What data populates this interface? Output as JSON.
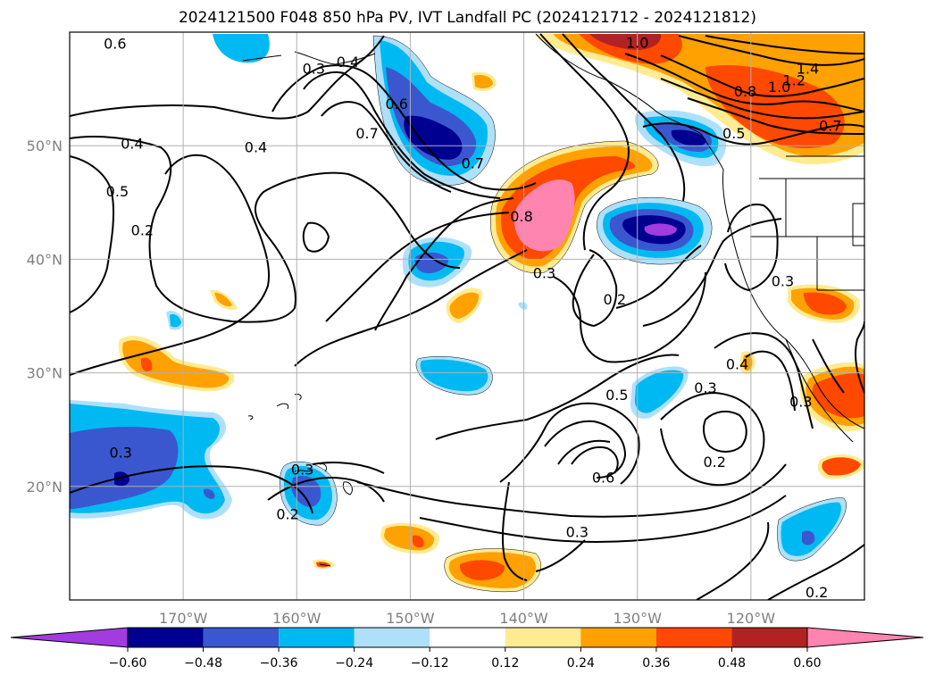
{
  "title": "2024121500 F048 850 hPa PV, IVT Landfall PC (2024121712 - 2024121812)",
  "map": {
    "lon_range": [
      -180,
      -110
    ],
    "lat_range": [
      10,
      60
    ],
    "lat_labels": [
      {
        "lat": 50,
        "text": "50°N"
      },
      {
        "lat": 40,
        "text": "40°N"
      },
      {
        "lat": 30,
        "text": "30°N"
      },
      {
        "lat": 20,
        "text": "20°N"
      }
    ],
    "lon_labels": [
      {
        "lon": -170,
        "text": "170°W"
      },
      {
        "lon": -160,
        "text": "160°W"
      },
      {
        "lon": -150,
        "text": "150°W"
      },
      {
        "lon": -140,
        "text": "140°W"
      },
      {
        "lon": -130,
        "text": "130°W"
      },
      {
        "lon": -120,
        "text": "120°W"
      }
    ]
  },
  "contour_labels": [
    {
      "text": "0.6",
      "lon": -176,
      "lat": 59
    },
    {
      "text": "0.4",
      "lon": -155.5,
      "lat": 57.4
    },
    {
      "text": "0.3",
      "lon": -158.5,
      "lat": 56.8
    },
    {
      "text": "1.0",
      "lon": -130,
      "lat": 59.1
    },
    {
      "text": "1.4",
      "lon": -115,
      "lat": 56.8
    },
    {
      "text": "1.2",
      "lon": -116.2,
      "lat": 55.8
    },
    {
      "text": "1.0",
      "lon": -117.5,
      "lat": 55.2
    },
    {
      "text": "0.8",
      "lon": -120.5,
      "lat": 54.8
    },
    {
      "text": "0.7",
      "lon": -113,
      "lat": 51.8
    },
    {
      "text": "0.5",
      "lon": -121.5,
      "lat": 51.1
    },
    {
      "text": "0.6",
      "lon": -151.2,
      "lat": 53.7
    },
    {
      "text": "0.7",
      "lon": -153.8,
      "lat": 51.1
    },
    {
      "text": "0.4",
      "lon": -163.6,
      "lat": 49.9
    },
    {
      "text": "0.4",
      "lon": -174.5,
      "lat": 50.2
    },
    {
      "text": "0.7",
      "lon": -144.5,
      "lat": 48.5
    },
    {
      "text": "0.5",
      "lon": -175.8,
      "lat": 46
    },
    {
      "text": "0.2",
      "lon": -173.6,
      "lat": 42.6
    },
    {
      "text": "0.8",
      "lon": -140.2,
      "lat": 43.8
    },
    {
      "text": "0.3",
      "lon": -138.2,
      "lat": 38.8
    },
    {
      "text": "0.2",
      "lon": -132,
      "lat": 36.5
    },
    {
      "text": "0.3",
      "lon": -117.2,
      "lat": 38.1
    },
    {
      "text": "0.4",
      "lon": -121.2,
      "lat": 30.8
    },
    {
      "text": "0.3",
      "lon": -124,
      "lat": 28.7
    },
    {
      "text": "0.3",
      "lon": -115.6,
      "lat": 27.5
    },
    {
      "text": "0.5",
      "lon": -131.8,
      "lat": 28.1
    },
    {
      "text": "0.3",
      "lon": -175.5,
      "lat": 23
    },
    {
      "text": "0.3",
      "lon": -159.5,
      "lat": 21.5
    },
    {
      "text": "0.2",
      "lon": -160.8,
      "lat": 17.6
    },
    {
      "text": "0.6",
      "lon": -133,
      "lat": 20.8
    },
    {
      "text": "0.2",
      "lon": -123.2,
      "lat": 22.2
    },
    {
      "text": "0.3",
      "lon": -135.3,
      "lat": 16
    },
    {
      "text": "0.2",
      "lon": -114.2,
      "lat": 10.7
    }
  ],
  "colorbar": {
    "colors": [
      "#a23be0",
      "#000090",
      "#3a57cf",
      "#00b9f2",
      "#aee0fa",
      "#ffffff",
      "#ffeb91",
      "#ffa100",
      "#ff4800",
      "#b22222",
      "#ff85b0"
    ],
    "ticks": [
      "−0.60",
      "−0.48",
      "−0.36",
      "−0.24",
      "−0.12",
      "0.12",
      "0.24",
      "0.36",
      "0.48",
      "0.60"
    ]
  }
}
